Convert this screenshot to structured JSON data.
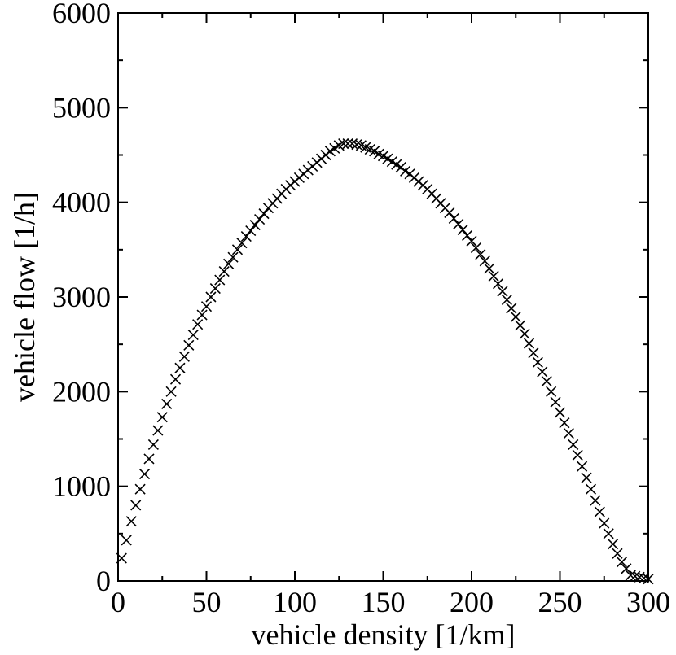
{
  "chart_data": {
    "type": "scatter",
    "title": "",
    "xlabel": "vehicle density [1/km]",
    "ylabel": "vehicle flow [1/h]",
    "xlim": [
      0,
      300
    ],
    "ylim": [
      0,
      6000
    ],
    "x_ticks": [
      0,
      50,
      100,
      150,
      200,
      250,
      300
    ],
    "x_tick_labels": [
      "0",
      "50",
      "100",
      "150",
      "200",
      "250",
      "300"
    ],
    "y_ticks": [
      0,
      1000,
      2000,
      3000,
      4000,
      5000,
      6000
    ],
    "y_tick_labels": [
      "0",
      "1000",
      "2000",
      "3000",
      "4000",
      "5000",
      "6000"
    ],
    "grid": false,
    "marker": "x",
    "marker_color": "#000000",
    "series": [
      {
        "x": [
          2,
          4.7,
          7.5,
          10,
          12.5,
          15,
          17.5,
          20,
          22.5,
          25,
          27.5,
          30,
          32.5,
          35,
          37.5,
          40,
          42.5,
          45,
          47.5,
          50,
          52.5,
          55,
          57.5,
          60,
          62.5,
          65,
          67.5,
          70,
          72.5,
          75,
          77.5,
          80,
          82.5,
          85,
          87.5,
          90,
          92.5,
          95,
          97.5,
          100,
          102.5,
          105,
          107.5,
          110,
          112.5,
          115,
          117.5,
          120,
          122.5,
          125,
          127.5,
          130,
          132.5,
          135,
          137.5,
          140,
          142.5,
          145,
          147.5,
          150,
          152.5,
          155,
          157.5,
          160,
          162.5,
          165,
          167.5,
          170,
          172.5,
          175,
          177.5,
          180,
          182.5,
          185,
          187.5,
          190,
          192.5,
          195,
          197.5,
          200,
          202.5,
          205,
          207.5,
          210,
          212.5,
          215,
          217.5,
          220,
          222.5,
          225,
          227.5,
          230,
          232.5,
          235,
          237.5,
          240,
          242.5,
          245,
          247.5,
          250,
          252.5,
          255,
          257.5,
          260,
          262.5,
          265,
          267.5,
          270,
          272.5,
          275,
          277.5,
          280,
          282.5,
          285,
          287.5,
          290,
          292.5,
          295,
          297.5,
          300
        ],
        "y": [
          240,
          430,
          630,
          800,
          970,
          1130,
          1290,
          1440,
          1590,
          1730,
          1870,
          2000,
          2130,
          2250,
          2370,
          2490,
          2600,
          2710,
          2810,
          2900,
          3000,
          3090,
          3180,
          3270,
          3350,
          3420,
          3500,
          3570,
          3640,
          3700,
          3760,
          3820,
          3880,
          3940,
          3990,
          4040,
          4090,
          4140,
          4180,
          4220,
          4260,
          4300,
          4340,
          4380,
          4420,
          4460,
          4500,
          4540,
          4570,
          4600,
          4620,
          4620,
          4620,
          4610,
          4600,
          4580,
          4560,
          4540,
          4510,
          4490,
          4460,
          4430,
          4400,
          4370,
          4330,
          4300,
          4260,
          4220,
          4180,
          4140,
          4090,
          4040,
          3990,
          3940,
          3890,
          3830,
          3770,
          3710,
          3650,
          3590,
          3520,
          3450,
          3380,
          3300,
          3220,
          3140,
          3060,
          2970,
          2880,
          2790,
          2700,
          2610,
          2510,
          2410,
          2310,
          2210,
          2110,
          2000,
          1890,
          1780,
          1670,
          1560,
          1440,
          1330,
          1210,
          1090,
          970,
          850,
          730,
          610,
          500,
          390,
          290,
          200,
          130,
          60,
          50,
          40,
          30,
          20
        ]
      }
    ]
  }
}
